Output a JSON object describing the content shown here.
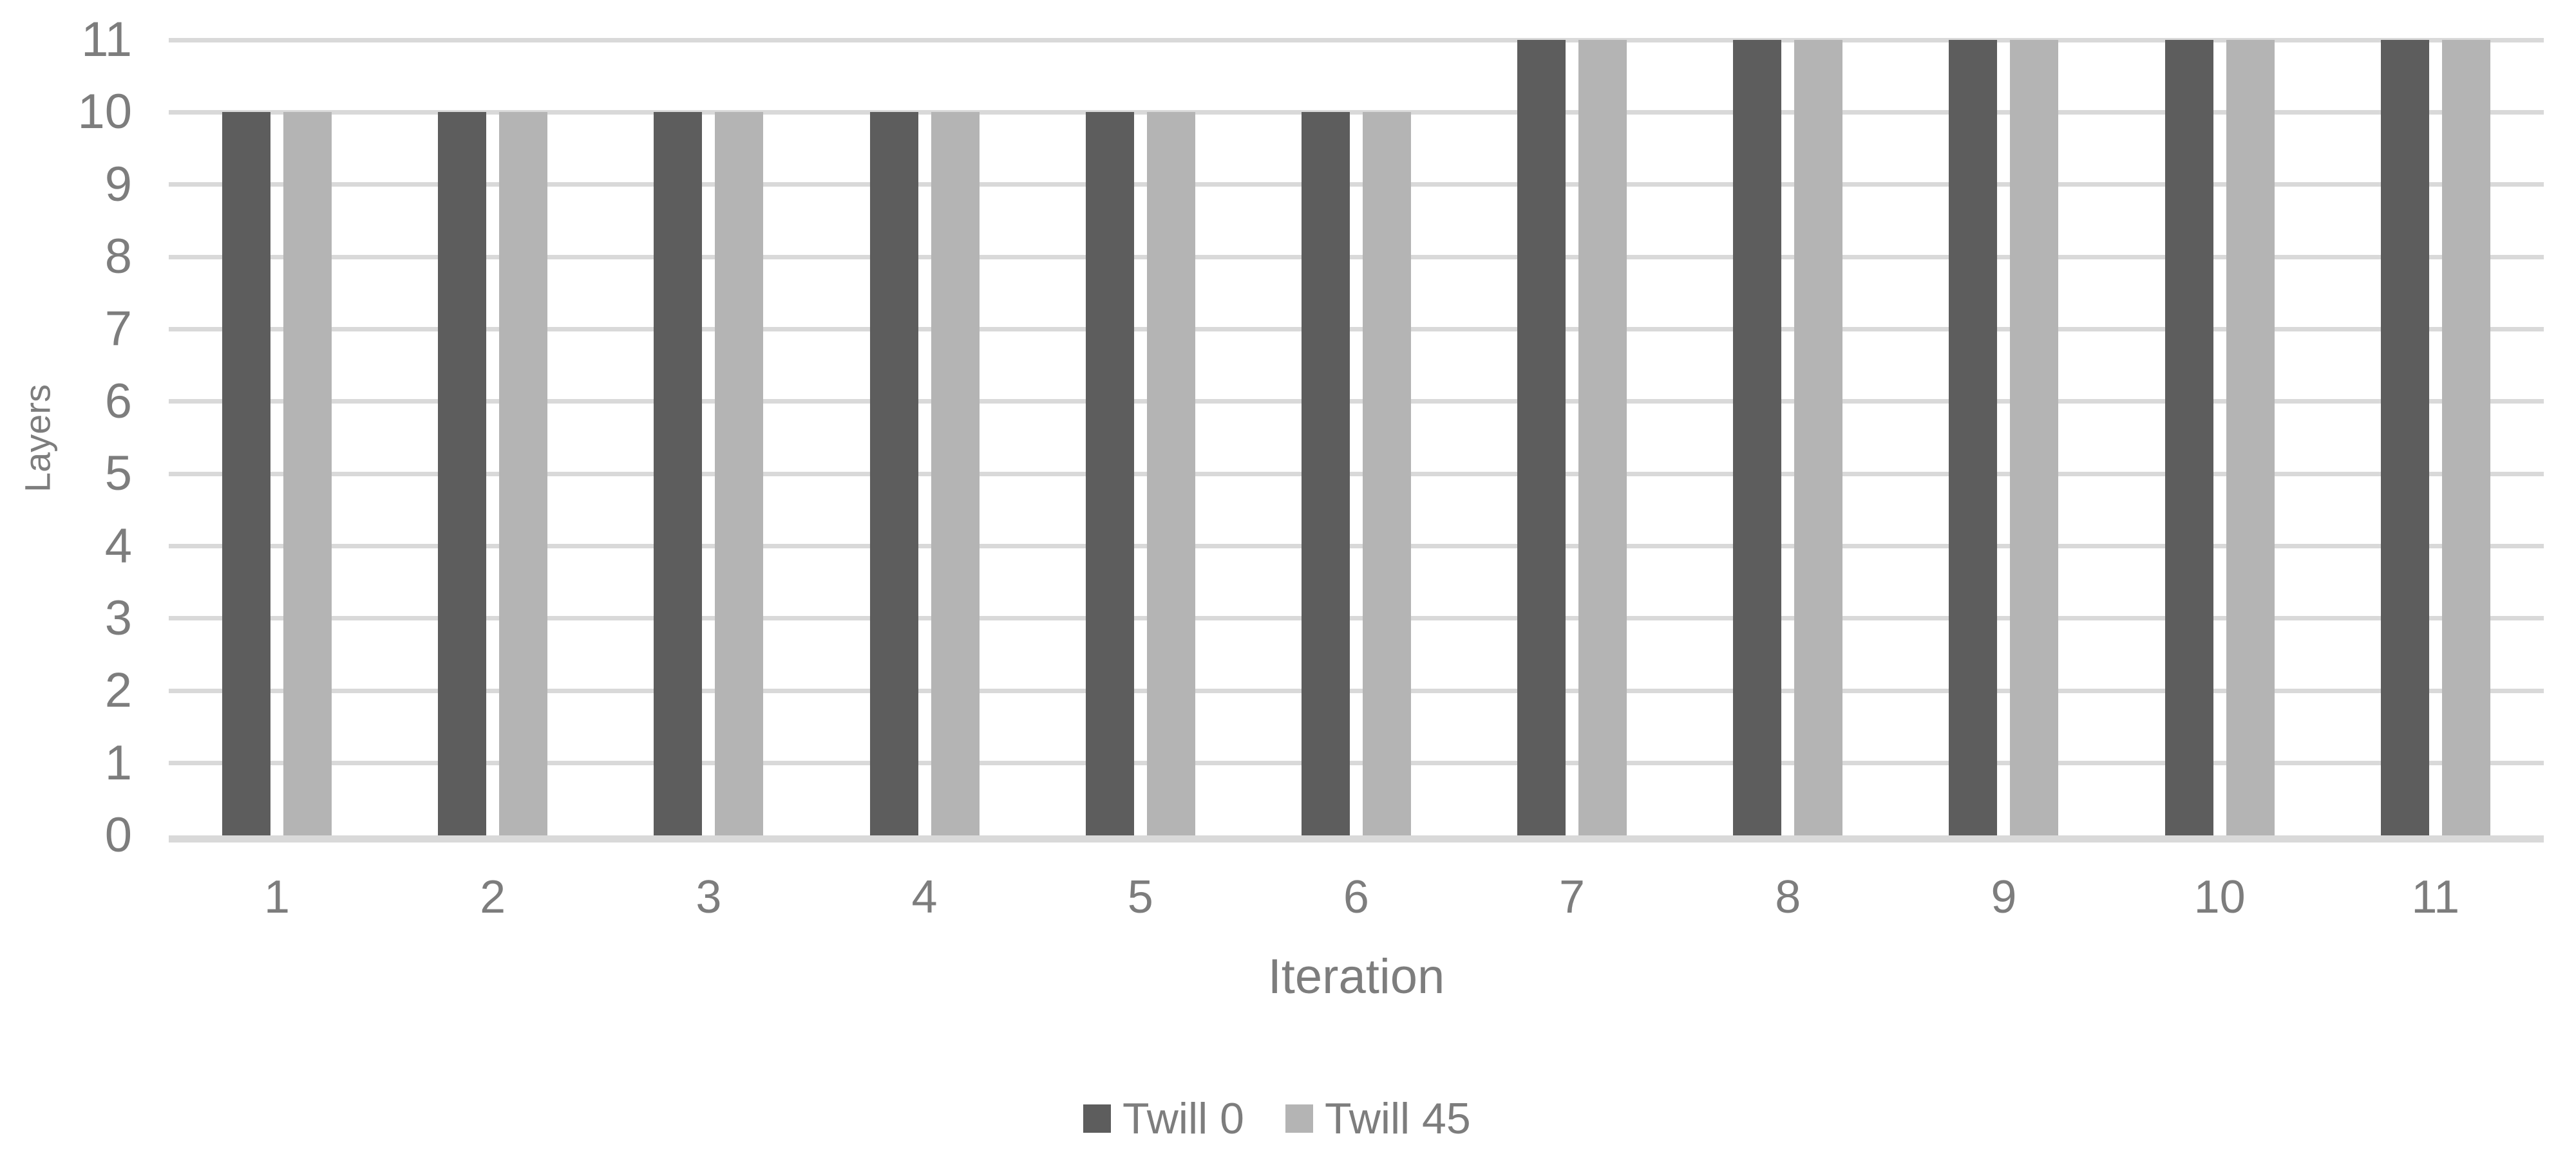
{
  "chart_data": {
    "type": "bar",
    "title": "",
    "categories": [
      "1",
      "2",
      "3",
      "4",
      "5",
      "6",
      "7",
      "8",
      "9",
      "10",
      "11"
    ],
    "series": [
      {
        "name": "Twill 0",
        "color": "#5d5d5d",
        "values": [
          10,
          10,
          10,
          10,
          10,
          10,
          11,
          11,
          11,
          11,
          11
        ]
      },
      {
        "name": "Twill 45",
        "color": "#b4b4b4",
        "values": [
          10,
          10,
          10,
          10,
          10,
          10,
          11,
          11,
          11,
          11,
          11
        ]
      }
    ],
    "xlabel": "Iteration",
    "ylabel": "Layers",
    "ylim": [
      0,
      11
    ],
    "yticks": [
      0,
      1,
      2,
      3,
      4,
      5,
      6,
      7,
      8,
      9,
      10,
      11
    ],
    "grid": "horizontal-only",
    "legend_position": "bottom-center",
    "gridline_color": "#d9d9d9",
    "axis_line_color": "#d9d9d9",
    "text_color": "#7d7d7d",
    "background_color": "#ffffff"
  }
}
